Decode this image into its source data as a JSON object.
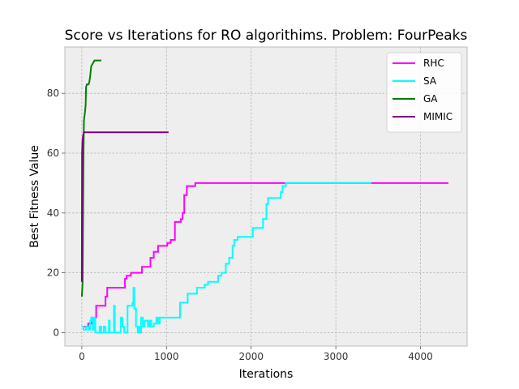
{
  "chart_data": {
    "type": "line",
    "title": "Score vs Iterations for RO algorithims.  Problem: FourPeaks",
    "xlabel": "Iterations",
    "ylabel": "Best Fitness Value",
    "xlim": [
      -200,
      4550
    ],
    "ylim": [
      -4.5,
      95.5
    ],
    "xticks": [
      0,
      1000,
      2000,
      3000,
      4000
    ],
    "yticks": [
      0,
      20,
      40,
      60,
      80
    ],
    "grid": true,
    "legend": "top-right",
    "series": [
      {
        "name": "RHC",
        "color": "#ff00ff",
        "step": true,
        "points": [
          [
            0,
            2
          ],
          [
            50,
            2
          ],
          [
            75,
            3
          ],
          [
            120,
            5
          ],
          [
            160,
            5
          ],
          [
            170,
            9
          ],
          [
            270,
            9
          ],
          [
            280,
            12
          ],
          [
            300,
            15
          ],
          [
            500,
            15
          ],
          [
            510,
            18
          ],
          [
            530,
            19
          ],
          [
            580,
            20
          ],
          [
            700,
            20
          ],
          [
            710,
            22
          ],
          [
            800,
            22
          ],
          [
            810,
            25
          ],
          [
            850,
            27
          ],
          [
            900,
            29
          ],
          [
            1010,
            30
          ],
          [
            1050,
            31
          ],
          [
            1100,
            37
          ],
          [
            1170,
            38
          ],
          [
            1190,
            40
          ],
          [
            1210,
            46
          ],
          [
            1240,
            49
          ],
          [
            1330,
            49
          ],
          [
            1340,
            50
          ],
          [
            4330,
            50
          ]
        ]
      },
      {
        "name": "SA",
        "color": "#00ffff",
        "step": true,
        "points": [
          [
            0,
            2
          ],
          [
            20,
            1
          ],
          [
            50,
            2
          ],
          [
            80,
            1
          ],
          [
            100,
            4
          ],
          [
            110,
            5
          ],
          [
            130,
            1
          ],
          [
            150,
            5
          ],
          [
            160,
            0
          ],
          [
            200,
            0
          ],
          [
            210,
            2
          ],
          [
            230,
            0
          ],
          [
            260,
            2
          ],
          [
            280,
            0
          ],
          [
            320,
            4
          ],
          [
            330,
            0
          ],
          [
            380,
            9
          ],
          [
            390,
            0
          ],
          [
            420,
            0
          ],
          [
            460,
            5
          ],
          [
            480,
            2
          ],
          [
            500,
            0
          ],
          [
            540,
            9
          ],
          [
            600,
            10
          ],
          [
            610,
            15
          ],
          [
            620,
            8
          ],
          [
            640,
            2
          ],
          [
            660,
            0
          ],
          [
            670,
            2
          ],
          [
            690,
            0
          ],
          [
            700,
            5
          ],
          [
            720,
            2
          ],
          [
            740,
            4
          ],
          [
            780,
            2
          ],
          [
            800,
            4
          ],
          [
            820,
            2
          ],
          [
            850,
            3
          ],
          [
            880,
            5
          ],
          [
            900,
            3
          ],
          [
            920,
            5
          ],
          [
            1100,
            5
          ],
          [
            1160,
            10
          ],
          [
            1250,
            13
          ],
          [
            1360,
            15
          ],
          [
            1450,
            16
          ],
          [
            1490,
            17
          ],
          [
            1600,
            17
          ],
          [
            1610,
            19
          ],
          [
            1650,
            20
          ],
          [
            1700,
            23
          ],
          [
            1740,
            25
          ],
          [
            1780,
            29
          ],
          [
            1800,
            31
          ],
          [
            1840,
            32
          ],
          [
            2000,
            32
          ],
          [
            2020,
            35
          ],
          [
            2120,
            35
          ],
          [
            2140,
            38
          ],
          [
            2180,
            43
          ],
          [
            2200,
            45
          ],
          [
            2350,
            47
          ],
          [
            2370,
            49
          ],
          [
            2410,
            50
          ],
          [
            3420,
            50
          ]
        ]
      },
      {
        "name": "GA",
        "color": "#008000",
        "step": false,
        "points": [
          [
            0,
            12
          ],
          [
            10,
            17
          ],
          [
            20,
            60
          ],
          [
            25,
            71
          ],
          [
            30,
            72
          ],
          [
            35,
            73
          ],
          [
            45,
            76
          ],
          [
            50,
            82
          ],
          [
            60,
            83
          ],
          [
            80,
            83
          ],
          [
            90,
            84
          ],
          [
            100,
            86
          ],
          [
            110,
            89
          ],
          [
            130,
            90
          ],
          [
            150,
            91
          ],
          [
            230,
            91
          ]
        ]
      },
      {
        "name": "MIMIC",
        "color": "#800080",
        "step": false,
        "points": [
          [
            0,
            17
          ],
          [
            3,
            60
          ],
          [
            8,
            64
          ],
          [
            15,
            66
          ],
          [
            25,
            67
          ],
          [
            1025,
            67
          ]
        ]
      }
    ]
  }
}
